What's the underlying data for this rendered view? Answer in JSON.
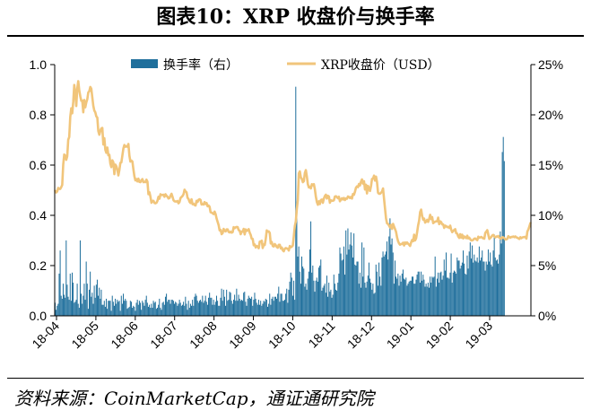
{
  "title": "图表10：XRP 收盘价与换手率",
  "source": "资料来源：CoinMarketCap，通证通研究院",
  "colors": {
    "bar": "#1f6f9c",
    "line": "#f1c57b",
    "axis": "#000000"
  },
  "chart_data": {
    "type": "bar+line",
    "x_tick_labels": [
      "18-04",
      "18-05",
      "18-06",
      "18-07",
      "18-08",
      "18-09",
      "18-10",
      "18-11",
      "18-12",
      "19-01",
      "19-02",
      "19-03"
    ],
    "left_axis": {
      "ticks": [
        "0.0",
        "0.2",
        "0.4",
        "0.6",
        "0.8",
        "1.0"
      ],
      "min": 0,
      "max": 1.0
    },
    "right_axis": {
      "ticks": [
        "0%",
        "5%",
        "10%",
        "15%",
        "20%",
        "25%"
      ],
      "min": 0,
      "max": 25
    },
    "legend": [
      {
        "label": "换手率（右）",
        "kind": "bar"
      },
      {
        "label": "XRP收盘价（USD）",
        "kind": "line"
      }
    ],
    "grid": false,
    "series": [
      {
        "name": "换手率（右）",
        "axis": "right",
        "type": "bar",
        "values": [
          1.3,
          0.6,
          1.0,
          1.2,
          4.2,
          6.5,
          2.0,
          1.7,
          3.2,
          2.1,
          1.8,
          7.5,
          3.1,
          1.9,
          1.6,
          4.2,
          1.5,
          4.3,
          3.3,
          1.3,
          1.4,
          1.6,
          3.2,
          1.2,
          0.8,
          7.5,
          2.2,
          1.2,
          2.0,
          3.2,
          1.6,
          5.4,
          3.2,
          0.7,
          2.6,
          4.4,
          1.9,
          2.3,
          1.2,
          3.0,
          1.8,
          3.1,
          3.6,
          2.0,
          2.8,
          1.7,
          2.6,
          1.1,
          1.1,
          1.5,
          0.9,
          1.7,
          0.7,
          1.5,
          1.5,
          1.5,
          0.5,
          2.0,
          1.4,
          1.0,
          1.7,
          1.2,
          1.6,
          1.4,
          1.5,
          0.5,
          2.0,
          1.2,
          2.2,
          1.5,
          1.7,
          1.5,
          0.7,
          0.8,
          0.9,
          1.5,
          1.4,
          0.8,
          1.0,
          0.9,
          0.5,
          1.3,
          1.6,
          1.1,
          1.5,
          1.3,
          0.6,
          1.5,
          1.3,
          1.0,
          1.6,
          2.0,
          1.3,
          0.9,
          1.1,
          0.8,
          1.2,
          0.8,
          1.5,
          1.3,
          1.4,
          0.7,
          0.8,
          1.1,
          1.7,
          0.8,
          0.6,
          1.3,
          1.4,
          1.1,
          1.9,
          2.2,
          1.4,
          1.6,
          1.6,
          1.2,
          1.6,
          1.6,
          1.5,
          1.2,
          1.4,
          1.3,
          1.0,
          1.2,
          1.6,
          1.3,
          1.0,
          1.1,
          1.4,
          1.0,
          1.9,
          1.2,
          0.6,
          1.5,
          0.8,
          1.2,
          1.0,
          1.6,
          1.0,
          1.9,
          2.2,
          2.0,
          1.5,
          1.3,
          1.5,
          1.6,
          1.4,
          2.0,
          1.3,
          1.5,
          2.0,
          1.4,
          1.1,
          1.8,
          2.3,
          1.8,
          1.8,
          1.1,
          1.6,
          1.1,
          1.4,
          2.0,
          1.5,
          1.0,
          1.0,
          1.8,
          2.7,
          1.5,
          2.6,
          1.9,
          1.0,
          2.6,
          1.5,
          1.6,
          2.4,
          2.3,
          1.5,
          1.2,
          1.6,
          2.1,
          1.5,
          2.7,
          1.5,
          2.1,
          1.7,
          1.5,
          1.6,
          1.5,
          2.3,
          2.4,
          1.4,
          1.0,
          1.7,
          2.0,
          1.8,
          1.7,
          1.9,
          1.0,
          1.6,
          2.3,
          1.7,
          1.3,
          1.1,
          1.6,
          1.1,
          1.5,
          1.0,
          1.2,
          1.5,
          1.4,
          1.7,
          1.6,
          0.9,
          1.2,
          2.2,
          1.1,
          1.7,
          1.9,
          1.5,
          1.9,
          1.9,
          1.7,
          2.2,
          2.9,
          1.4,
          2.2,
          2.2,
          1.5,
          1.5,
          1.6,
          2.2,
          2.7,
          1.3,
          2.6,
          3.4,
          4.3,
          3.8,
          2.0,
          3.5,
          1.6,
          22.8,
          10.7,
          5.9,
          6.9,
          4.4,
          3.2,
          5.9,
          4.9,
          4.7,
          2.9,
          3.2,
          2.6,
          3.7,
          4.4,
          6.6,
          9.4,
          4.3,
          5.0,
          3.5,
          2.4,
          3.5,
          3.8,
          3.4,
          4.8,
          5.0,
          5.6,
          2.5,
          2.8,
          3.0,
          3.2,
          2.3,
          4.0,
          1.9,
          3.3,
          2.4,
          2.6,
          1.8,
          2.1,
          4.1,
          3.2,
          2.6,
          2.5,
          3.3,
          4.2,
          6.8,
          6.2,
          5.5,
          5.6,
          6.9,
          4.1,
          8.5,
          6.1,
          8.7,
          6.6,
          7.1,
          8.3,
          7.0,
          5.8,
          8.2,
          5.1,
          5.0,
          5.4,
          5.4,
          3.2,
          4.3,
          2.8,
          7.3,
          3.9,
          6.8,
          3.3,
          2.8,
          3.4,
          4.0,
          5.3,
          3.7,
          3.3,
          2.6,
          3.2,
          2.2,
          2.3,
          5.1,
          4.4,
          3.0,
          5.3,
          3.9,
          3.0,
          5.8,
          6.4,
          5.9,
          6.1,
          6.4,
          7.4,
          5.6,
          7.9,
          9.7,
          7.1,
          7.7,
          6.3,
          3.2,
          5.5,
          3.9,
          3.7,
          4.2,
          3.0,
          4.0,
          3.4,
          4.2,
          4.6,
          3.7,
          3.6,
          3.8,
          3.0,
          3.2,
          3.4,
          3.5,
          3.5,
          3.9,
          3.9,
          3.2,
          3.2,
          3.6,
          4.1,
          4.4,
          4.4,
          3.3,
          4.4,
          3.5,
          4.1,
          3.6,
          2.9,
          3.2,
          2.9,
          3.3,
          2.8,
          3.9,
          3.3,
          3.9,
          3.8,
          3.9,
          5.9,
          2.9,
          3.7,
          4.3,
          3.3,
          4.3,
          4.4,
          3.6,
          4.0,
          5.6,
          4.5,
          6.3,
          3.8,
          3.8,
          3.7,
          4.3,
          6.2,
          3.3,
          4.3,
          4.5,
          4.4,
          4.2,
          5.8,
          5.5,
          5.5,
          4.7,
          5.0,
          5.3,
          6.5,
          5.2,
          4.2,
          4.1,
          6.0,
          4.7,
          6.4,
          7.3,
          5.7,
          7.0,
          5.3,
          6.1,
          5.5,
          5.4,
          5.8,
          5.3,
          6.9,
          5.5,
          5.8,
          6.5,
          5.4,
          5.4,
          4.5,
          5.4,
          5.1,
          6.6,
          5.4,
          6.3,
          5.1,
          4.9,
          6.5,
          8.1,
          5.8,
          5.5,
          5.6,
          5.2,
          6.1,
          8.4,
          7.2,
          16.3,
          17.8,
          15.4
        ]
      },
      {
        "name": "XRP收盘价（USD）",
        "axis": "left",
        "type": "line",
        "values": [
          0.497,
          0.491,
          0.495,
          0.509,
          0.505,
          0.505,
          0.512,
          0.521,
          0.602,
          0.642,
          0.638,
          0.621,
          0.635,
          0.701,
          0.712,
          0.791,
          0.826,
          0.806,
          0.852,
          0.919,
          0.889,
          0.835,
          0.904,
          0.934,
          0.897,
          0.874,
          0.856,
          0.857,
          0.81,
          0.859,
          0.83,
          0.849,
          0.862,
          0.889,
          0.894,
          0.911,
          0.904,
          0.87,
          0.836,
          0.817,
          0.81,
          0.794,
          0.789,
          0.735,
          0.721,
          0.736,
          0.746,
          0.748,
          0.682,
          0.707,
          0.661,
          0.649,
          0.67,
          0.639,
          0.641,
          0.606,
          0.592,
          0.619,
          0.611,
          0.564,
          0.602,
          0.595,
          0.582,
          0.559,
          0.58,
          0.609,
          0.611,
          0.638,
          0.666,
          0.68,
          0.673,
          0.675,
          0.673,
          0.684,
          0.638,
          0.614,
          0.618,
          0.614,
          0.583,
          0.555,
          0.539,
          0.544,
          0.535,
          0.546,
          0.533,
          0.532,
          0.54,
          0.544,
          0.532,
          0.533,
          0.532,
          0.542,
          0.534,
          0.484,
          0.492,
          0.474,
          0.45,
          0.457,
          0.458,
          0.449,
          0.448,
          0.45,
          0.458,
          0.474,
          0.466,
          0.484,
          0.481,
          0.481,
          0.482,
          0.474,
          0.484,
          0.478,
          0.474,
          0.467,
          0.469,
          0.478,
          0.486,
          0.474,
          0.46,
          0.456,
          0.455,
          0.455,
          0.457,
          0.448,
          0.453,
          0.469,
          0.473,
          0.477,
          0.484,
          0.502,
          0.495,
          0.492,
          0.47,
          0.465,
          0.454,
          0.449,
          0.464,
          0.444,
          0.446,
          0.441,
          0.439,
          0.458,
          0.453,
          0.462,
          0.464,
          0.461,
          0.443,
          0.445,
          0.443,
          0.453,
          0.445,
          0.449,
          0.436,
          0.439,
          0.434,
          0.412,
          0.411,
          0.408,
          0.405,
          0.415,
          0.405,
          0.387,
          0.374,
          0.361,
          0.34,
          0.342,
          0.325,
          0.329,
          0.346,
          0.338,
          0.336,
          0.344,
          0.344,
          0.334,
          0.332,
          0.335,
          0.331,
          0.333,
          0.353,
          0.349,
          0.352,
          0.354,
          0.353,
          0.341,
          0.339,
          0.325,
          0.335,
          0.335,
          0.346,
          0.324,
          0.344,
          0.338,
          0.34,
          0.345,
          0.331,
          0.322,
          0.307,
          0.306,
          0.281,
          0.284,
          0.272,
          0.278,
          0.276,
          0.269,
          0.295,
          0.296,
          0.299,
          0.27,
          0.284,
          0.282,
          0.306,
          0.34,
          0.335,
          0.336,
          0.33,
          0.288,
          0.294,
          0.278,
          0.276,
          0.286,
          0.281,
          0.274,
          0.271,
          0.283,
          0.283,
          0.268,
          0.272,
          0.261,
          0.257,
          0.267,
          0.27,
          0.268,
          0.267,
          0.26,
          0.278,
          0.273,
          0.275,
          0.28,
          0.317,
          0.357,
          0.376,
          0.425,
          0.461,
          0.567,
          0.575,
          0.551,
          0.545,
          0.532,
          0.536,
          0.568,
          0.58,
          0.555,
          0.524,
          0.511,
          0.514,
          0.507,
          0.524,
          0.52,
          0.524,
          0.504,
          0.474,
          0.453,
          0.442,
          0.456,
          0.445,
          0.461,
          0.463,
          0.45,
          0.467,
          0.477,
          0.482,
          0.467,
          0.478,
          0.475,
          0.45,
          0.46,
          0.458,
          0.458,
          0.46,
          0.475,
          0.476,
          0.473,
          0.468,
          0.474,
          0.456,
          0.462,
          0.468,
          0.463,
          0.469,
          0.461,
          0.467,
          0.466,
          0.475,
          0.473,
          0.469,
          0.473,
          0.467,
          0.485,
          0.482,
          0.494,
          0.51,
          0.515,
          0.512,
          0.525,
          0.519,
          0.534,
          0.543,
          0.526,
          0.536,
          0.503,
          0.522,
          0.487,
          0.517,
          0.509,
          0.497,
          0.516,
          0.545,
          0.546,
          0.558,
          0.538,
          0.554,
          0.532,
          0.49,
          0.486,
          0.486,
          0.49,
          0.495,
          0.507,
          0.466,
          0.426,
          0.387,
          0.368,
          0.366,
          0.359,
          0.352,
          0.362,
          0.346,
          0.366,
          0.355,
          0.345,
          0.334,
          0.312,
          0.297,
          0.288,
          0.283,
          0.286,
          0.286,
          0.291,
          0.28,
          0.292,
          0.287,
          0.292,
          0.287,
          0.283,
          0.278,
          0.292,
          0.302,
          0.297,
          0.323,
          0.3,
          0.309,
          0.333,
          0.36,
          0.379,
          0.413,
          0.423,
          0.398,
          0.383,
          0.387,
          0.371,
          0.375,
          0.382,
          0.374,
          0.385,
          0.402,
          0.385,
          0.393,
          0.369,
          0.372,
          0.375,
          0.376,
          0.376,
          0.391,
          0.365,
          0.376,
          0.373,
          0.364,
          0.364,
          0.35,
          0.359,
          0.357,
          0.353,
          0.354,
          0.35,
          0.359,
          0.343,
          0.333,
          0.337,
          0.342,
          0.345,
          0.329,
          0.327,
          0.316,
          0.31,
          0.325,
          0.311,
          0.323,
          0.308,
          0.316,
          0.313,
          0.309,
          0.319,
          0.308,
          0.311,
          0.305,
          0.3,
          0.3,
          0.303,
          0.307,
          0.308,
          0.304,
          0.301,
          0.315,
          0.311,
          0.312,
          0.314,
          0.311,
          0.308,
          0.307,
          0.33,
          0.335,
          0.341,
          0.323,
          0.306,
          0.31,
          0.314,
          0.32,
          0.322,
          0.316,
          0.312,
          0.316,
          0.315,
          0.318,
          0.311,
          0.309,
          0.307,
          0.313,
          0.312,
          0.309,
          0.304,
          0.304,
          0.307,
          0.317,
          0.313,
          0.311,
          0.314,
          0.314,
          0.316,
          0.313,
          0.316,
          0.312,
          0.311,
          0.308,
          0.306,
          0.313,
          0.309,
          0.312,
          0.313,
          0.314,
          0.314,
          0.307,
          0.336,
          0.344,
          0.356,
          0.369
        ]
      }
    ]
  }
}
